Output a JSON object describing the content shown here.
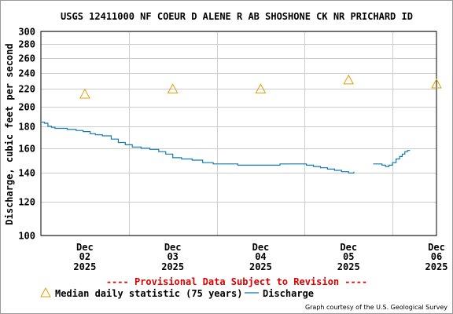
{
  "chart_data": {
    "type": "line",
    "title": "USGS 12411000 NF COEUR D ALENE R AB SHOSHONE CK NR PRICHARD ID",
    "ylabel": "Discharge, cubic feet per second",
    "xlabel": "",
    "y_scale": "log",
    "ylim": [
      100,
      300
    ],
    "y_ticks": [
      100,
      120,
      140,
      160,
      180,
      200,
      220,
      240,
      260,
      280,
      300
    ],
    "xlim": [
      0,
      4.5
    ],
    "x_ticks": [
      {
        "x": 0.5,
        "month": "Dec",
        "day": "02",
        "year": "2025"
      },
      {
        "x": 1.5,
        "month": "Dec",
        "day": "03",
        "year": "2025"
      },
      {
        "x": 2.5,
        "month": "Dec",
        "day": "04",
        "year": "2025"
      },
      {
        "x": 3.5,
        "month": "Dec",
        "day": "05",
        "year": "2025"
      },
      {
        "x": 4.5,
        "month": "Dec",
        "day": "06",
        "year": "2025"
      }
    ],
    "grid": true,
    "series": [
      {
        "name": "Discharge",
        "color": "#0e7bb3",
        "segments": [
          [
            [
              0.0,
              184
            ],
            [
              0.04,
              183
            ],
            [
              0.08,
              180
            ],
            [
              0.12,
              179
            ],
            [
              0.16,
              178
            ],
            [
              0.22,
              178
            ],
            [
              0.3,
              177
            ],
            [
              0.4,
              176
            ],
            [
              0.48,
              175
            ],
            [
              0.56,
              173
            ],
            [
              0.62,
              172
            ],
            [
              0.7,
              171
            ],
            [
              0.8,
              168
            ],
            [
              0.88,
              165
            ],
            [
              0.96,
              163
            ],
            [
              1.04,
              161
            ],
            [
              1.14,
              160
            ],
            [
              1.24,
              159
            ],
            [
              1.34,
              157
            ],
            [
              1.42,
              155
            ],
            [
              1.5,
              152
            ],
            [
              1.6,
              151
            ],
            [
              1.72,
              150
            ],
            [
              1.84,
              148
            ],
            [
              1.96,
              147
            ],
            [
              2.1,
              147
            ],
            [
              2.24,
              146
            ],
            [
              2.4,
              146
            ],
            [
              2.56,
              146
            ],
            [
              2.72,
              147
            ],
            [
              2.88,
              147
            ],
            [
              3.02,
              146
            ],
            [
              3.1,
              145
            ],
            [
              3.18,
              144
            ],
            [
              3.26,
              143
            ],
            [
              3.34,
              142
            ],
            [
              3.42,
              141
            ],
            [
              3.5,
              140
            ],
            [
              3.56,
              141
            ]
          ],
          [
            [
              3.78,
              147
            ],
            [
              3.84,
              147
            ],
            [
              3.88,
              146
            ],
            [
              3.92,
              145
            ],
            [
              3.96,
              146
            ],
            [
              4.0,
              148
            ],
            [
              4.04,
              151
            ],
            [
              4.08,
              153
            ],
            [
              4.11,
              155
            ],
            [
              4.14,
              157
            ],
            [
              4.17,
              158
            ],
            [
              4.2,
              158
            ]
          ]
        ]
      },
      {
        "name": "Median daily statistic (75 years)",
        "color": "#e39d00",
        "marker": "triangle",
        "points": [
          [
            0.5,
            214
          ],
          [
            1.5,
            220
          ],
          [
            2.5,
            220
          ],
          [
            3.5,
            231
          ],
          [
            4.5,
            226
          ]
        ]
      }
    ]
  },
  "provisional_note": "---- Provisional Data Subject to Revision ----",
  "legend": {
    "median_label": "Median daily statistic (75 years)",
    "discharge_label": "Discharge"
  },
  "credit": "Graph courtesy of the U.S. Geological Survey",
  "colors": {
    "discharge": "#0e7bb3",
    "median": "#e39d00",
    "provisional": "#dd0000",
    "grid": "#cccccc"
  }
}
